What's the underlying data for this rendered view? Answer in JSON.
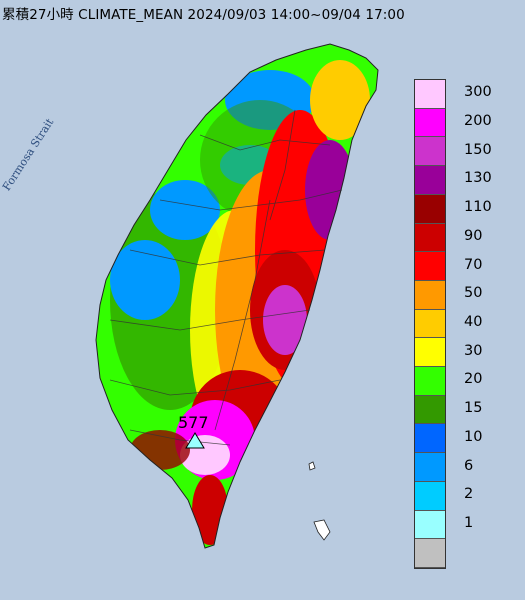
{
  "title": "累積27小時 CLIMATE_MEAN 2024/09/03 14:00~09/04 17:00",
  "strait_label": "Formosa Strait",
  "max_station": {
    "value": "577",
    "marker": "triangle-icon"
  },
  "legend": {
    "levels": [
      {
        "label": "300",
        "color": "#ffc8ff"
      },
      {
        "label": "200",
        "color": "#ff00ff"
      },
      {
        "label": "150",
        "color": "#cc33cc"
      },
      {
        "label": "130",
        "color": "#990099"
      },
      {
        "label": "110",
        "color": "#990000"
      },
      {
        "label": "90",
        "color": "#cc0000"
      },
      {
        "label": "70",
        "color": "#ff0000"
      },
      {
        "label": "50",
        "color": "#ff9900"
      },
      {
        "label": "40",
        "color": "#ffcc00"
      },
      {
        "label": "30",
        "color": "#ffff00"
      },
      {
        "label": "20",
        "color": "#33ff00"
      },
      {
        "label": "15",
        "color": "#339900"
      },
      {
        "label": "10",
        "color": "#0066ff"
      },
      {
        "label": "6",
        "color": "#0099ff"
      },
      {
        "label": "2",
        "color": "#00ccff"
      },
      {
        "label": "1",
        "color": "#99ffff"
      },
      {
        "label": "",
        "color": "#c0c0c0"
      }
    ]
  },
  "colors": {
    "sea": "#b9cbe0",
    "land_outline": "#222222"
  }
}
